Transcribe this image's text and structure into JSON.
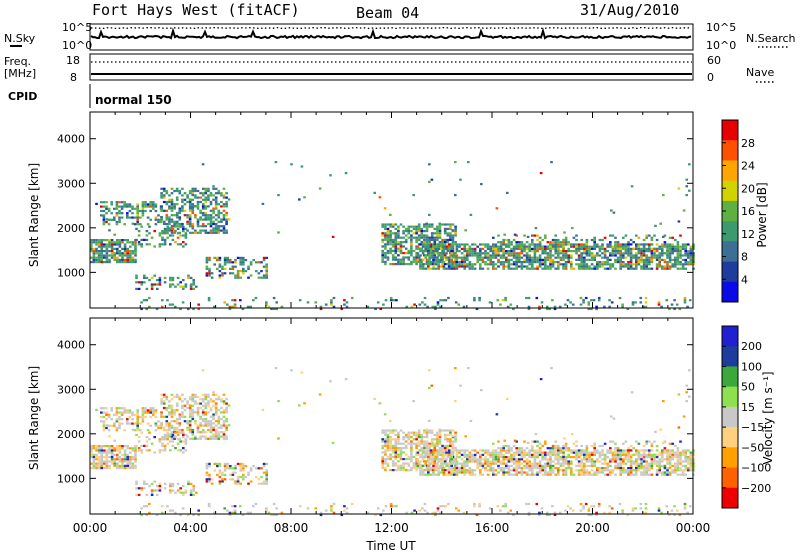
{
  "header": {
    "station": "Fort Hays West (fitACF)",
    "beam": "Beam 04",
    "date": "31/Aug/2010"
  },
  "top_panels": {
    "nsky_label": "N.Sky",
    "nsky_ticks": [
      "10^5",
      "10^0"
    ],
    "nsearch_label": "N.Search",
    "freq_label_1": "Freq.",
    "freq_label_2": "[MHz]",
    "freq_ticks": [
      "18",
      "8"
    ],
    "nave_ticks": [
      "60",
      "0"
    ],
    "nave_label": "Nave",
    "cpid_label": "CPID",
    "cpid_value": "normal 150"
  },
  "colors": {
    "power": [
      "#0a0ae6",
      "#1e3c9b",
      "#3c6e96",
      "#3c9b6e",
      "#5faf41",
      "#d2d200",
      "#ffa500",
      "#ff5000",
      "#e60000"
    ],
    "velocity": [
      "#ee0000",
      "#ff6000",
      "#ffa000",
      "#ffd080",
      "#c8c8c8",
      "#8fe04f",
      "#3ca83c",
      "#1e3c9b",
      "#2020d0"
    ]
  },
  "chart_data": [
    {
      "type": "heatmap",
      "name": "power",
      "xlabel": "",
      "ylabel": "Slant Range [km]",
      "x_ticks": [
        "00:00",
        "04:00",
        "08:00",
        "12:00",
        "16:00",
        "20:00",
        "00:00"
      ],
      "xlim": [
        0,
        24
      ],
      "y_ticks": [
        1000,
        2000,
        3000,
        4000
      ],
      "ylim": [
        200,
        4600
      ],
      "colorbar": {
        "label": "Power [dB]",
        "ticks": [
          4,
          8,
          12,
          16,
          20,
          24,
          28
        ],
        "range": [
          0,
          32
        ]
      },
      "scatter_regions": [
        {
          "t": [
            0.0,
            1.8
          ],
          "r": [
            1250,
            1750
          ],
          "density": 0.8
        },
        {
          "t": [
            0.4,
            2.8
          ],
          "r": [
            2100,
            2600
          ],
          "density": 0.45
        },
        {
          "t": [
            2.8,
            5.4
          ],
          "r": [
            1900,
            2900
          ],
          "density": 0.55
        },
        {
          "t": [
            1.8,
            3.8
          ],
          "r": [
            1600,
            2050
          ],
          "density": 0.35
        },
        {
          "t": [
            1.8,
            4.2
          ],
          "r": [
            620,
            950
          ],
          "density": 0.3
        },
        {
          "t": [
            4.6,
            7.0
          ],
          "r": [
            900,
            1350
          ],
          "density": 0.4
        },
        {
          "t": [
            11.6,
            14.5
          ],
          "r": [
            1200,
            2100
          ],
          "density": 0.65
        },
        {
          "t": [
            13.0,
            24.0
          ],
          "r": [
            1100,
            1650
          ],
          "density": 0.7
        },
        {
          "t": [
            16.0,
            23.5
          ],
          "r": [
            1500,
            1850
          ],
          "density": 0.25
        },
        {
          "t": [
            2.0,
            24.0
          ],
          "r": [
            200,
            450
          ],
          "density": 0.12
        },
        {
          "t": [
            0.0,
            24.0
          ],
          "r": [
            1800,
            3500
          ],
          "density": 0.012
        }
      ]
    },
    {
      "type": "heatmap",
      "name": "velocity",
      "xlabel": "Time UT",
      "ylabel": "Slant Range [km]",
      "x_ticks": [
        "00:00",
        "04:00",
        "08:00",
        "12:00",
        "16:00",
        "20:00",
        "00:00"
      ],
      "xlim": [
        0,
        24
      ],
      "y_ticks": [
        1000,
        2000,
        3000,
        4000
      ],
      "ylim": [
        200,
        4600
      ],
      "colorbar": {
        "label": "Velocity [m s⁻¹]",
        "ticks": [
          200,
          100,
          50,
          15,
          -15,
          -50,
          -100,
          -200
        ]
      },
      "scatter_regions": [
        {
          "t": [
            0.0,
            1.8
          ],
          "r": [
            1250,
            1750
          ],
          "density": 0.8
        },
        {
          "t": [
            0.4,
            2.8
          ],
          "r": [
            2100,
            2600
          ],
          "density": 0.45
        },
        {
          "t": [
            2.8,
            5.4
          ],
          "r": [
            1900,
            2900
          ],
          "density": 0.55
        },
        {
          "t": [
            1.8,
            3.8
          ],
          "r": [
            1600,
            2050
          ],
          "density": 0.35
        },
        {
          "t": [
            1.8,
            4.2
          ],
          "r": [
            620,
            950
          ],
          "density": 0.3
        },
        {
          "t": [
            4.6,
            7.0
          ],
          "r": [
            900,
            1350
          ],
          "density": 0.4
        },
        {
          "t": [
            11.6,
            14.5
          ],
          "r": [
            1200,
            2100
          ],
          "density": 0.65
        },
        {
          "t": [
            13.0,
            24.0
          ],
          "r": [
            1100,
            1650
          ],
          "density": 0.7
        },
        {
          "t": [
            16.0,
            23.5
          ],
          "r": [
            1500,
            1850
          ],
          "density": 0.25
        },
        {
          "t": [
            2.0,
            24.0
          ],
          "r": [
            200,
            450
          ],
          "density": 0.12
        },
        {
          "t": [
            0.0,
            24.0
          ],
          "r": [
            1800,
            3500
          ],
          "density": 0.012
        }
      ]
    }
  ]
}
